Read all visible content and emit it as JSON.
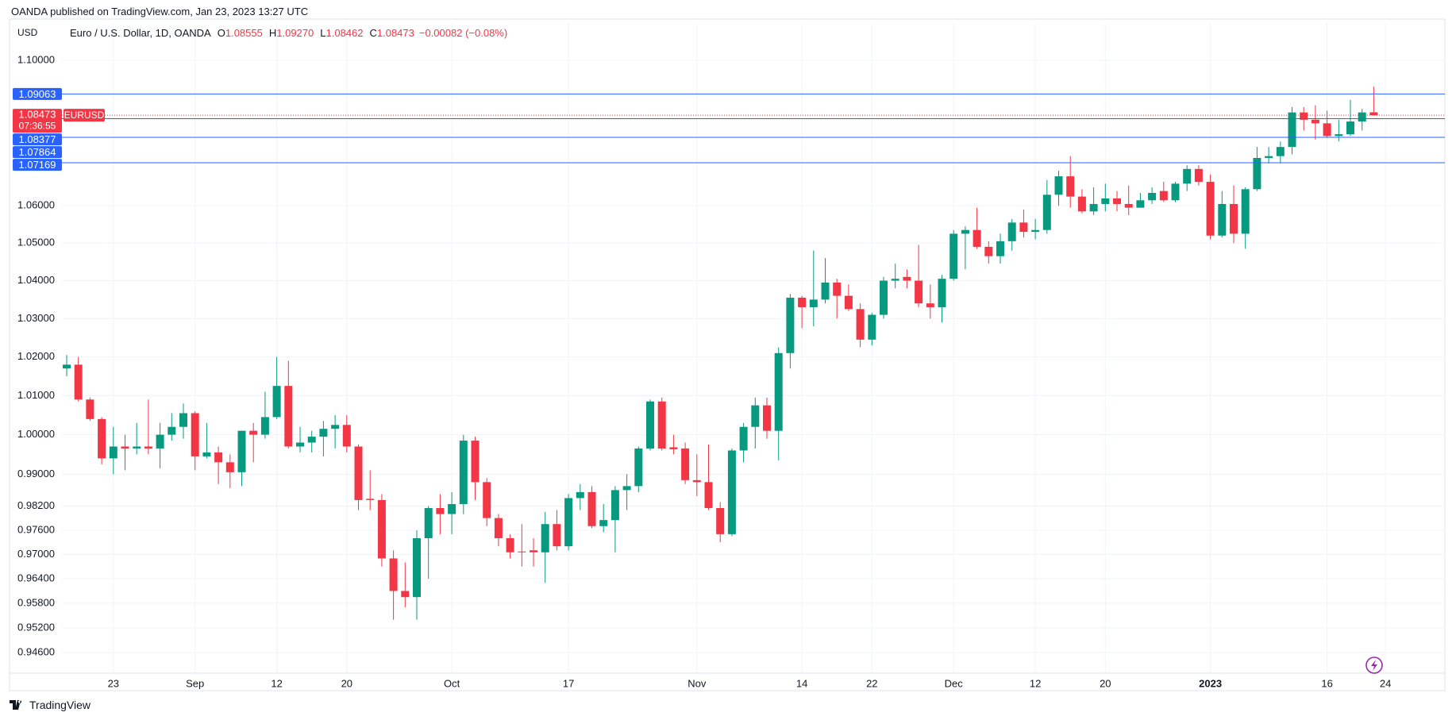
{
  "header": {
    "published": "OANDA published on TradingView.com, Jan 23, 2023 13:27 UTC"
  },
  "footer": {
    "brand": "TradingView"
  },
  "chart_data": {
    "type": "candlestick",
    "currency": "USD",
    "legend": {
      "symbol": "Euro / U.S. Dollar, 1D, OANDA",
      "ohlc": [
        {
          "key": "O",
          "value": "1.08555"
        },
        {
          "key": "H",
          "value": "1.09270"
        },
        {
          "key": "L",
          "value": "1.08462"
        },
        {
          "key": "C",
          "value": "1.08473"
        }
      ],
      "change": "−0.00082 (−0.08%)"
    },
    "log": true,
    "grid": true,
    "up_color": "#089981",
    "down_color": "#f23645",
    "ylim": [
      0.9411,
      1.1105
    ],
    "yticks": [
      {
        "value": 1.1,
        "label": "1.10000"
      },
      {
        "value": 1.06,
        "label": "1.06000"
      },
      {
        "value": 1.05,
        "label": "1.05000"
      },
      {
        "value": 1.04,
        "label": "1.04000"
      },
      {
        "value": 1.03,
        "label": "1.03000"
      },
      {
        "value": 1.02,
        "label": "1.02000"
      },
      {
        "value": 1.01,
        "label": "1.01000"
      },
      {
        "value": 1.0,
        "label": "1.00000"
      },
      {
        "value": 0.99,
        "label": "0.99000"
      },
      {
        "value": 0.982,
        "label": "0.98200"
      },
      {
        "value": 0.976,
        "label": "0.97600"
      },
      {
        "value": 0.97,
        "label": "0.97000"
      },
      {
        "value": 0.964,
        "label": "0.96400"
      },
      {
        "value": 0.958,
        "label": "0.95800"
      },
      {
        "value": 0.952,
        "label": "0.95200"
      },
      {
        "value": 0.946,
        "label": "0.94600"
      }
    ],
    "xticks": [
      {
        "value": 4,
        "label": "23"
      },
      {
        "value": 11,
        "label": "Sep"
      },
      {
        "value": 18,
        "label": "12"
      },
      {
        "value": 24,
        "label": "20"
      },
      {
        "value": 33,
        "label": "Oct"
      },
      {
        "value": 43,
        "label": "17"
      },
      {
        "value": 54,
        "label": "Nov"
      },
      {
        "value": 63,
        "label": "14"
      },
      {
        "value": 69,
        "label": "22"
      },
      {
        "value": 76,
        "label": "Dec"
      },
      {
        "value": 83,
        "label": "12"
      },
      {
        "value": 89,
        "label": "20"
      },
      {
        "value": 98,
        "label": "2023"
      },
      {
        "value": 108,
        "label": "16"
      },
      {
        "value": 113,
        "label": "24"
      }
    ],
    "levels": [
      {
        "value": 1.09063,
        "label": "1.09063",
        "color": "#2962ff"
      },
      {
        "value": 1.08377,
        "label": "1.08377",
        "color": "#2962ff"
      },
      {
        "value": 1.07864,
        "label": "1.07864",
        "color": "#2962ff"
      },
      {
        "value": 1.07169,
        "label": "1.07169",
        "color": "#2962ff"
      }
    ],
    "price_line": {
      "value": 1.08473,
      "label": "1.08473",
      "countdown": "07:36:55",
      "symbol": "EURUSD",
      "color": "#f23645"
    },
    "open": [
      1.017,
      1.018,
      1.009,
      1.004,
      0.994,
      0.997,
      0.9965,
      0.997,
      0.9965,
      1.0,
      1.002,
      1.0055,
      0.9945,
      0.9955,
      0.993,
      0.9905,
      1.001,
      1.0,
      1.0045,
      1.0125,
      0.997,
      0.998,
      0.9995,
      1.0015,
      1.0025,
      0.997,
      0.9838,
      0.9835,
      0.969,
      0.961,
      0.9595,
      0.974,
      0.9815,
      0.98,
      0.9825,
      0.9985,
      0.988,
      0.979,
      0.974,
      0.9707,
      0.971,
      0.9705,
      0.9775,
      0.972,
      0.984,
      0.9855,
      0.977,
      0.9785,
      0.986,
      0.987,
      0.9965,
      1.0085,
      0.9968,
      0.9965,
      0.9885,
      0.988,
      0.9815,
      0.975,
      0.996,
      1.002,
      1.0075,
      1.001,
      1.021,
      1.0355,
      1.033,
      1.035,
      1.0395,
      1.036,
      1.0325,
      1.0245,
      1.031,
      1.04,
      1.041,
      1.04,
      1.034,
      1.033,
      1.0405,
      1.0525,
      1.0535,
      1.049,
      1.0465,
      1.0505,
      1.0555,
      1.053,
      1.0535,
      1.063,
      1.068,
      1.0625,
      1.0585,
      1.0605,
      1.062,
      1.0605,
      1.0595,
      1.0615,
      1.064,
      1.0615,
      1.066,
      1.07,
      1.0665,
      1.052,
      1.0605,
      1.0525,
      1.0645,
      1.073,
      1.0735,
      1.076,
      1.0855,
      1.0835,
      1.0825,
      1.079,
      1.0795,
      1.083,
      1.08555
    ],
    "high": [
      1.0205,
      1.02,
      1.0095,
      1.0045,
      1.002,
      1.0,
      1.003,
      1.009,
      1.003,
      1.0055,
      1.008,
      1.006,
      1.003,
      0.997,
      0.995,
      1.001,
      1.003,
      1.011,
      1.02,
      1.019,
      1.002,
      1.001,
      1.0035,
      1.005,
      1.005,
      0.9975,
      0.991,
      0.985,
      0.971,
      0.968,
      0.976,
      0.982,
      0.985,
      0.9855,
      1.0,
      0.9995,
      0.989,
      0.98,
      0.975,
      0.9775,
      0.974,
      0.9805,
      0.981,
      0.985,
      0.9875,
      0.987,
      0.9825,
      0.987,
      0.99,
      0.997,
      1.009,
      1.0095,
      1.0,
      0.998,
      0.995,
      0.9975,
      0.983,
      0.9965,
      1.003,
      1.0095,
      1.0095,
      1.0225,
      1.0365,
      1.036,
      1.048,
      1.046,
      1.0405,
      1.039,
      1.034,
      1.0315,
      1.041,
      1.0445,
      1.043,
      1.0495,
      1.039,
      1.0415,
      1.0535,
      1.0545,
      1.0595,
      1.0505,
      1.0525,
      1.0565,
      1.059,
      1.0565,
      1.067,
      1.0695,
      1.0735,
      1.0645,
      1.065,
      1.066,
      1.064,
      1.0655,
      1.0635,
      1.065,
      1.0665,
      1.0665,
      1.071,
      1.071,
      1.0685,
      1.064,
      1.0655,
      1.065,
      1.076,
      1.076,
      1.0775,
      1.087,
      1.087,
      1.0875,
      1.086,
      1.0835,
      1.089,
      1.0865,
      1.0927
    ],
    "low": [
      1.015,
      1.0085,
      1.0035,
      0.9925,
      0.99,
      0.991,
      0.995,
      0.995,
      0.9915,
      0.9985,
      0.999,
      0.991,
      0.994,
      0.9875,
      0.9865,
      0.987,
      0.993,
      0.999,
      1.004,
      0.9965,
      0.9955,
      0.9955,
      0.9945,
      0.9965,
      0.9955,
      0.981,
      0.981,
      0.967,
      0.954,
      0.957,
      0.954,
      0.964,
      0.975,
      0.975,
      0.98,
      0.9835,
      0.977,
      0.972,
      0.969,
      0.967,
      0.967,
      0.963,
      0.971,
      0.971,
      0.981,
      0.9765,
      0.9755,
      0.9705,
      0.981,
      0.9855,
      0.996,
      0.996,
      0.995,
      0.9875,
      0.9845,
      0.981,
      0.973,
      0.9745,
      0.993,
      0.9965,
      0.999,
      0.9935,
      1.017,
      1.0275,
      1.028,
      1.034,
      1.03,
      1.032,
      1.0225,
      1.023,
      1.03,
      1.038,
      1.038,
      1.033,
      1.03,
      1.029,
      1.04,
      1.043,
      1.0485,
      1.0445,
      1.0445,
      1.048,
      1.0515,
      1.051,
      1.0525,
      1.06,
      1.0595,
      1.058,
      1.0575,
      1.0585,
      1.0585,
      1.0575,
      1.0595,
      1.0605,
      1.061,
      1.061,
      1.064,
      1.0655,
      1.051,
      1.0515,
      1.05,
      1.0485,
      1.064,
      1.0715,
      1.0715,
      1.074,
      1.0805,
      1.078,
      1.0785,
      1.0775,
      1.079,
      1.0805,
      1.08462
    ],
    "close": [
      1.018,
      1.009,
      1.004,
      0.994,
      0.997,
      0.9965,
      0.997,
      0.9965,
      1.0,
      1.002,
      1.0055,
      0.9945,
      0.9955,
      0.993,
      0.9905,
      1.001,
      1.0,
      1.0045,
      1.0125,
      0.997,
      0.998,
      0.9995,
      1.0015,
      1.0025,
      0.997,
      0.9835,
      0.9835,
      0.969,
      0.961,
      0.9595,
      0.974,
      0.9815,
      0.98,
      0.9825,
      0.9985,
      0.988,
      0.979,
      0.974,
      0.9705,
      0.9705,
      0.9705,
      0.9775,
      0.972,
      0.984,
      0.9855,
      0.977,
      0.9785,
      0.986,
      0.987,
      0.9965,
      1.0085,
      0.9965,
      0.9963,
      0.9885,
      0.988,
      0.9815,
      0.975,
      0.996,
      1.002,
      1.0075,
      1.001,
      1.021,
      1.0355,
      1.033,
      1.035,
      1.0395,
      1.036,
      1.0325,
      1.0245,
      1.031,
      1.04,
      1.0405,
      1.04,
      1.034,
      1.033,
      1.0405,
      1.0525,
      1.0535,
      1.049,
      1.0465,
      1.0505,
      1.0555,
      1.053,
      1.0535,
      1.063,
      1.068,
      1.0625,
      1.0585,
      1.0605,
      1.062,
      1.0605,
      1.0595,
      1.0615,
      1.0635,
      1.0615,
      1.066,
      1.07,
      1.0665,
      1.052,
      1.0605,
      1.0525,
      1.0645,
      1.073,
      1.0735,
      1.076,
      1.0855,
      1.0835,
      1.0825,
      1.079,
      1.0795,
      1.083,
      1.0855,
      1.08473
    ]
  }
}
